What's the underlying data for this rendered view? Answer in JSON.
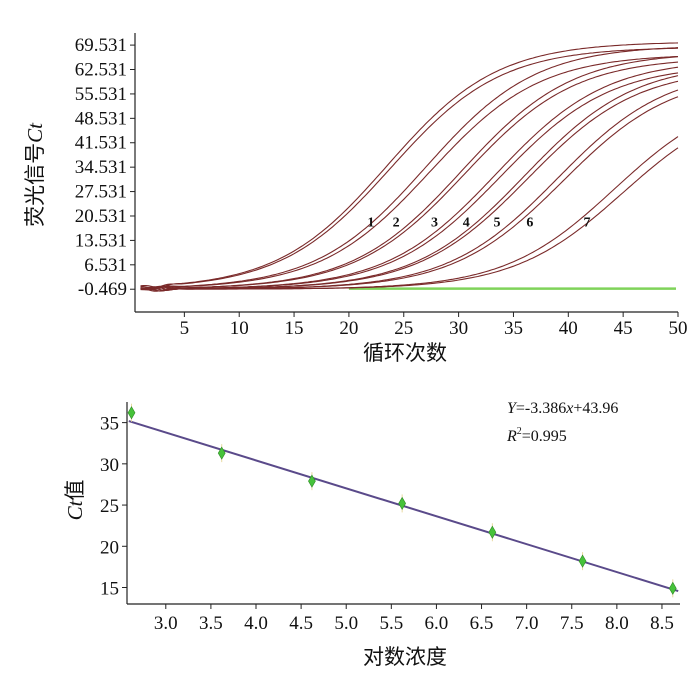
{
  "chart_data": [
    {
      "type": "line",
      "ylabel_prefix": "荧光信号",
      "ylabel_ct": "Ct",
      "xlabel": "循环次数",
      "xlim": [
        0.5,
        50
      ],
      "ylim": [
        -7,
        73
      ],
      "y_ticks": [
        "69.531",
        "62.531",
        "55.531",
        "48.531",
        "41.531",
        "34.531",
        "27.531",
        "20.531",
        "13.531",
        "6.531",
        "-0.469"
      ],
      "x_ticks": [
        "5",
        "10",
        "15",
        "20",
        "25",
        "30",
        "35",
        "40",
        "45",
        "50"
      ],
      "curve_labels": [
        {
          "text": "1",
          "x": 22,
          "y": 17.5
        },
        {
          "text": "2",
          "x": 24.3,
          "y": 17.5
        },
        {
          "text": "3",
          "x": 27.8,
          "y": 17.5
        },
        {
          "text": "4",
          "x": 30.7,
          "y": 17.5
        },
        {
          "text": "5",
          "x": 33.5,
          "y": 17.5
        },
        {
          "text": "6",
          "x": 36.5,
          "y": 17.5
        },
        {
          "text": "7",
          "x": 41.7,
          "y": 17.5
        }
      ],
      "series": [
        {
          "group": "1",
          "replicates": [
            {
              "mid": 23.5,
              "max": 70.5
            },
            {
              "mid": 23.8,
              "max": 69.0
            }
          ]
        },
        {
          "group": "2",
          "replicates": [
            {
              "mid": 27.0,
              "max": 69.5
            },
            {
              "mid": 27.4,
              "max": 67.0
            }
          ]
        },
        {
          "group": "3",
          "replicates": [
            {
              "mid": 30.3,
              "max": 67.5
            },
            {
              "mid": 30.6,
              "max": 66.0
            }
          ]
        },
        {
          "group": "4",
          "replicates": [
            {
              "mid": 33.4,
              "max": 65.5
            },
            {
              "mid": 33.8,
              "max": 64.0
            }
          ]
        },
        {
          "group": "5",
          "replicates": [
            {
              "mid": 36.0,
              "max": 64.5
            },
            {
              "mid": 36.3,
              "max": 63.0
            }
          ]
        },
        {
          "group": "6",
          "replicates": [
            {
              "mid": 39.0,
              "max": 63.0
            },
            {
              "mid": 39.5,
              "max": 61.5
            }
          ]
        },
        {
          "group": "7",
          "replicates": [
            {
              "mid": 44.2,
              "max": 57.0
            },
            {
              "mid": 45.0,
              "max": 55.0
            }
          ]
        }
      ],
      "baseline_color": "#7fd35a",
      "curve_color": "#7a2a2a"
    },
    {
      "type": "scatter",
      "equation_y": "Y",
      "equation_rest": "=-3.386",
      "equation_x": "x",
      "equation_tail": "+43.96",
      "r2_r": "R",
      "r2_sup": "2",
      "r2_value": "=0.995",
      "ylabel_ct": "Ct",
      "ylabel_suffix": "值",
      "xlabel": "对数浓度",
      "xlim": [
        2.57,
        8.7
      ],
      "ylim": [
        13,
        37.5
      ],
      "x_ticks": [
        "3.0",
        "3.5",
        "4.0",
        "4.5",
        "5.0",
        "5.5",
        "6.0",
        "6.5",
        "7.0",
        "7.5",
        "8.0",
        "8.5"
      ],
      "y_ticks": [
        "35",
        "30",
        "25",
        "20",
        "15"
      ],
      "points": [
        {
          "x": 2.62,
          "y": 36.2
        },
        {
          "x": 3.62,
          "y": 31.3
        },
        {
          "x": 4.62,
          "y": 27.9
        },
        {
          "x": 5.62,
          "y": 25.2
        },
        {
          "x": 6.62,
          "y": 21.7
        },
        {
          "x": 7.62,
          "y": 18.2
        },
        {
          "x": 8.62,
          "y": 14.9
        }
      ],
      "fit": {
        "slope": -3.386,
        "intercept": 43.96
      },
      "point_color": "#46c23a",
      "line_color": "#5a4a8a"
    }
  ]
}
